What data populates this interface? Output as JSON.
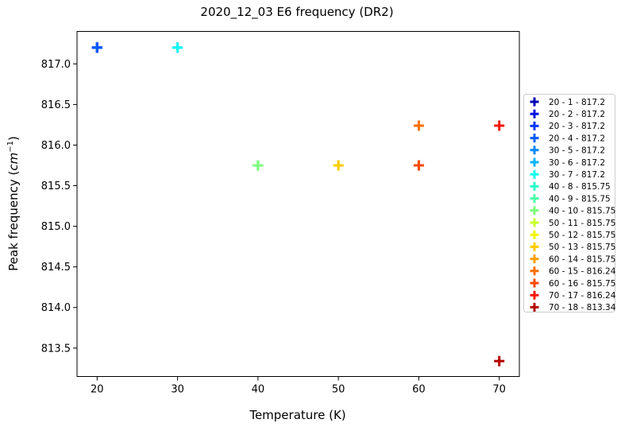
{
  "chart_data": {
    "type": "scatter",
    "title": "2020_12_03 E6 frequency (DR2)",
    "xlabel": "Temperature (K)",
    "ylabel_main": "Peak frequency (",
    "ylabel_unit": "cm",
    "ylabel_exp": "−1",
    "ylabel_end": ")",
    "xlim": [
      17.5,
      72.5
    ],
    "ylim": [
      813.15,
      817.4
    ],
    "x_ticks": [
      20,
      30,
      40,
      50,
      60,
      70
    ],
    "y_ticks": [
      813.5,
      814.0,
      814.5,
      815.0,
      815.5,
      816.0,
      816.5,
      817.0
    ],
    "grid": false,
    "legend_position": "right, outside plot",
    "marker": "plus",
    "series": [
      {
        "name": "20 - 1 - 817.2",
        "x": 20,
        "y": 817.2,
        "color": "#0000b3"
      },
      {
        "name": "20 - 2 - 817.2",
        "x": 20,
        "y": 817.2,
        "color": "#0010e0"
      },
      {
        "name": "20 - 3 - 817.2",
        "x": 20,
        "y": 817.2,
        "color": "#0034ff"
      },
      {
        "name": "20 - 4 - 817.2",
        "x": 20,
        "y": 817.2,
        "color": "#005cff"
      },
      {
        "name": "30 - 5 - 817.2",
        "x": 30,
        "y": 817.2,
        "color": "#0088ff"
      },
      {
        "name": "30 - 6 - 817.2",
        "x": 30,
        "y": 817.2,
        "color": "#00b4ff"
      },
      {
        "name": "30 - 7 - 817.2",
        "x": 30,
        "y": 817.2,
        "color": "#13fcf1"
      },
      {
        "name": "40 - 8 - 815.75",
        "x": 40,
        "y": 815.75,
        "color": "#2dffca"
      },
      {
        "name": "40 - 9 - 815.75",
        "x": 40,
        "y": 815.75,
        "color": "#4dffa9"
      },
      {
        "name": "40 - 10 - 815.75",
        "x": 40,
        "y": 815.75,
        "color": "#7dff7a"
      },
      {
        "name": "50 - 11 - 815.75",
        "x": 50,
        "y": 815.75,
        "color": "#c7ff30"
      },
      {
        "name": "50 - 12 - 815.75",
        "x": 50,
        "y": 815.75,
        "color": "#f0f700"
      },
      {
        "name": "50 - 13 - 815.75",
        "x": 50,
        "y": 815.75,
        "color": "#ffcc00"
      },
      {
        "name": "60 - 14 - 815.75",
        "x": 60,
        "y": 815.75,
        "color": "#ff9e00"
      },
      {
        "name": "60 - 15 - 816.24",
        "x": 60,
        "y": 816.24,
        "color": "#ff7000"
      },
      {
        "name": "60 - 16 - 815.75",
        "x": 60,
        "y": 815.75,
        "color": "#ff4800"
      },
      {
        "name": "70 - 17 - 816.24",
        "x": 70,
        "y": 816.24,
        "color": "#f51700"
      },
      {
        "name": "70 - 18 - 813.34",
        "x": 70,
        "y": 813.34,
        "color": "#b30000"
      }
    ]
  }
}
